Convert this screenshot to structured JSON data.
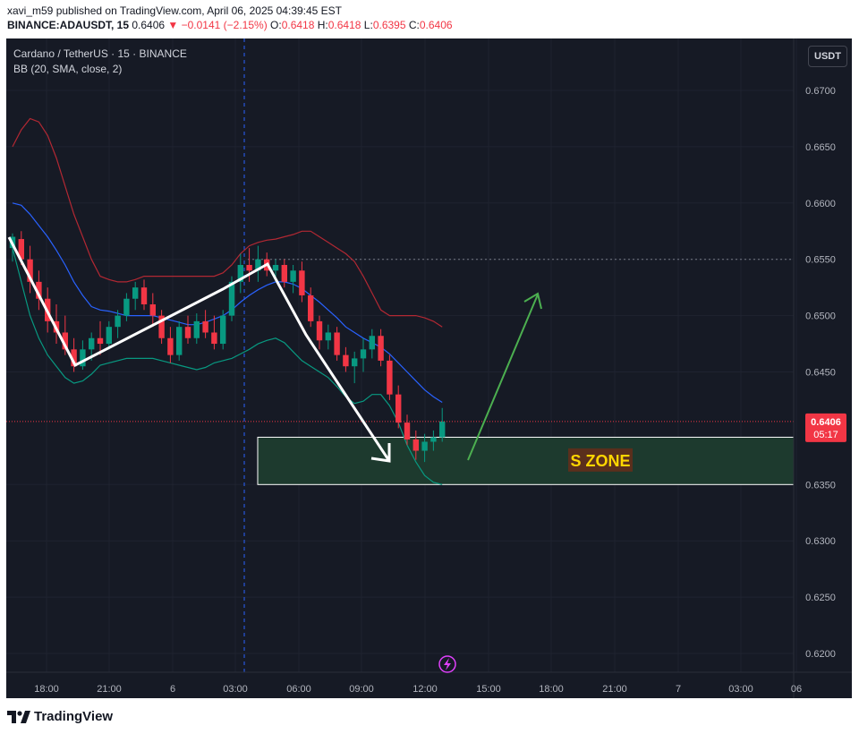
{
  "header": {
    "publisher": "xavi_m59 published on TradingView.com, April 06, 2025 04:39:45 EST",
    "symbol": "BINANCE:ADAUSDT, 15",
    "last": "0.6406",
    "change": "▼ −0.0141 (−2.15%)",
    "o_label": "O:",
    "o": "0.6418",
    "h_label": "H:",
    "h": "0.6418",
    "l_label": "L:",
    "l": "0.6395",
    "c_label": "C:",
    "c": "0.6406"
  },
  "legend": {
    "title": "Cardano / TetherUS · 15 · BINANCE",
    "indicator": "BB (20, SMA, close, 2)"
  },
  "currency_button": "USDT",
  "price_tag": {
    "price": "0.6406",
    "countdown": "05:17"
  },
  "zone_label": "S ZONE",
  "footer": {
    "brand": "TradingView"
  },
  "colors": {
    "background": "#161a25",
    "up": "#089981",
    "down": "#f23645",
    "bb_upper": "#b22833",
    "bb_basis": "#2962ff",
    "bb_lower": "#089981",
    "zone_fill": "#1d3a2e",
    "zone_label_bg": "#5a2f1c",
    "zone_label_text": "#ffd600",
    "arrow_green": "#4caf50"
  },
  "chart_data": {
    "type": "candlestick",
    "interval": "15m",
    "y_ticks": [
      "0.6700",
      "0.6650",
      "0.6600",
      "0.6550",
      "0.6500",
      "0.6450",
      "0.6350",
      "0.6300",
      "0.6250",
      "0.6200"
    ],
    "x_ticks": [
      "18:00",
      "21:00",
      "6",
      "03:00",
      "06:00",
      "09:00",
      "12:00",
      "15:00",
      "18:00",
      "21:00",
      "7",
      "03:00",
      "06"
    ],
    "ylim": [
      0.618,
      0.672
    ],
    "last_price": 0.6406,
    "zone": {
      "label": "S ZONE",
      "price_top": 0.6392,
      "price_bottom": 0.635
    },
    "ohlc": [
      [
        0.656,
        0.6573,
        0.6548,
        0.657
      ],
      [
        0.6568,
        0.6575,
        0.6545,
        0.655
      ],
      [
        0.655,
        0.6562,
        0.652,
        0.653
      ],
      [
        0.653,
        0.654,
        0.6505,
        0.6515
      ],
      [
        0.6515,
        0.6525,
        0.6485,
        0.6495
      ],
      [
        0.6495,
        0.651,
        0.6475,
        0.6485
      ],
      [
        0.6485,
        0.65,
        0.6465,
        0.647
      ],
      [
        0.647,
        0.648,
        0.645,
        0.6455
      ],
      [
        0.6455,
        0.6478,
        0.6452,
        0.647
      ],
      [
        0.647,
        0.6485,
        0.646,
        0.648
      ],
      [
        0.648,
        0.6495,
        0.6465,
        0.6475
      ],
      [
        0.6475,
        0.6495,
        0.647,
        0.649
      ],
      [
        0.649,
        0.6505,
        0.648,
        0.65
      ],
      [
        0.65,
        0.652,
        0.6495,
        0.6515
      ],
      [
        0.6515,
        0.653,
        0.6505,
        0.6525
      ],
      [
        0.6525,
        0.6532,
        0.6505,
        0.651
      ],
      [
        0.651,
        0.652,
        0.649,
        0.65
      ],
      [
        0.65,
        0.6505,
        0.6475,
        0.648
      ],
      [
        0.648,
        0.649,
        0.6458,
        0.6465
      ],
      [
        0.6465,
        0.6495,
        0.646,
        0.649
      ],
      [
        0.649,
        0.65,
        0.6475,
        0.648
      ],
      [
        0.648,
        0.6502,
        0.6475,
        0.6495
      ],
      [
        0.6495,
        0.6505,
        0.648,
        0.6485
      ],
      [
        0.6485,
        0.65,
        0.647,
        0.6475
      ],
      [
        0.6475,
        0.6505,
        0.647,
        0.65
      ],
      [
        0.65,
        0.6535,
        0.6495,
        0.653
      ],
      [
        0.653,
        0.6555,
        0.652,
        0.6545
      ],
      [
        0.6545,
        0.656,
        0.653,
        0.654
      ],
      [
        0.654,
        0.6562,
        0.653,
        0.655
      ],
      [
        0.655,
        0.6556,
        0.6535,
        0.654
      ],
      [
        0.654,
        0.655,
        0.653,
        0.6545
      ],
      [
        0.6545,
        0.655,
        0.6525,
        0.653
      ],
      [
        0.653,
        0.6545,
        0.652,
        0.654
      ],
      [
        0.654,
        0.6548,
        0.6512,
        0.6518
      ],
      [
        0.6518,
        0.6525,
        0.649,
        0.6495
      ],
      [
        0.6495,
        0.65,
        0.647,
        0.6478
      ],
      [
        0.6478,
        0.6492,
        0.647,
        0.6485
      ],
      [
        0.6485,
        0.649,
        0.646,
        0.6465
      ],
      [
        0.6465,
        0.6472,
        0.645,
        0.6455
      ],
      [
        0.6455,
        0.6468,
        0.644,
        0.6462
      ],
      [
        0.6462,
        0.648,
        0.645,
        0.647
      ],
      [
        0.647,
        0.6488,
        0.6462,
        0.6482
      ],
      [
        0.6482,
        0.6488,
        0.6455,
        0.646
      ],
      [
        0.646,
        0.6465,
        0.6425,
        0.643
      ],
      [
        0.643,
        0.6438,
        0.64,
        0.6405
      ],
      [
        0.6405,
        0.6412,
        0.6385,
        0.639
      ],
      [
        0.639,
        0.6398,
        0.6372,
        0.638
      ],
      [
        0.638,
        0.6395,
        0.637,
        0.6388
      ],
      [
        0.6388,
        0.6398,
        0.638,
        0.6392
      ],
      [
        0.6392,
        0.6418,
        0.6388,
        0.6406
      ]
    ],
    "bollinger": {
      "upper": [
        0.665,
        0.6665,
        0.6675,
        0.6672,
        0.666,
        0.664,
        0.6615,
        0.659,
        0.657,
        0.655,
        0.6535,
        0.6532,
        0.653,
        0.653,
        0.6532,
        0.6535,
        0.6535,
        0.6535,
        0.6535,
        0.6535,
        0.6535,
        0.6535,
        0.6535,
        0.6535,
        0.6538,
        0.6545,
        0.6555,
        0.6562,
        0.6565,
        0.6567,
        0.6568,
        0.657,
        0.6572,
        0.6575,
        0.6575,
        0.657,
        0.6565,
        0.656,
        0.6555,
        0.6548,
        0.6535,
        0.652,
        0.6505,
        0.65,
        0.65,
        0.65,
        0.65,
        0.6498,
        0.6495,
        0.649
      ],
      "basis": [
        0.66,
        0.6598,
        0.659,
        0.658,
        0.657,
        0.6558,
        0.6545,
        0.653,
        0.6518,
        0.6508,
        0.6505,
        0.6504,
        0.6502,
        0.65,
        0.65,
        0.65,
        0.65,
        0.6498,
        0.6496,
        0.6494,
        0.6492,
        0.6492,
        0.6494,
        0.6497,
        0.65,
        0.6505,
        0.6512,
        0.6518,
        0.6523,
        0.6527,
        0.653,
        0.653,
        0.6528,
        0.6524,
        0.6518,
        0.6512,
        0.6505,
        0.6498,
        0.649,
        0.6485,
        0.648,
        0.6476,
        0.6472,
        0.6466,
        0.6458,
        0.645,
        0.6442,
        0.6434,
        0.6428,
        0.6423
      ],
      "lower": [
        0.656,
        0.653,
        0.65,
        0.648,
        0.6465,
        0.6455,
        0.6445,
        0.644,
        0.6442,
        0.6448,
        0.6456,
        0.6458,
        0.646,
        0.6462,
        0.6462,
        0.6462,
        0.6462,
        0.646,
        0.6458,
        0.6456,
        0.6454,
        0.6452,
        0.6454,
        0.6458,
        0.646,
        0.6462,
        0.6466,
        0.647,
        0.6475,
        0.6478,
        0.648,
        0.6476,
        0.6468,
        0.646,
        0.6455,
        0.645,
        0.6445,
        0.6437,
        0.6428,
        0.6422,
        0.6424,
        0.643,
        0.643,
        0.642,
        0.6405,
        0.6385,
        0.637,
        0.6358,
        0.6352,
        0.635
      ]
    }
  }
}
